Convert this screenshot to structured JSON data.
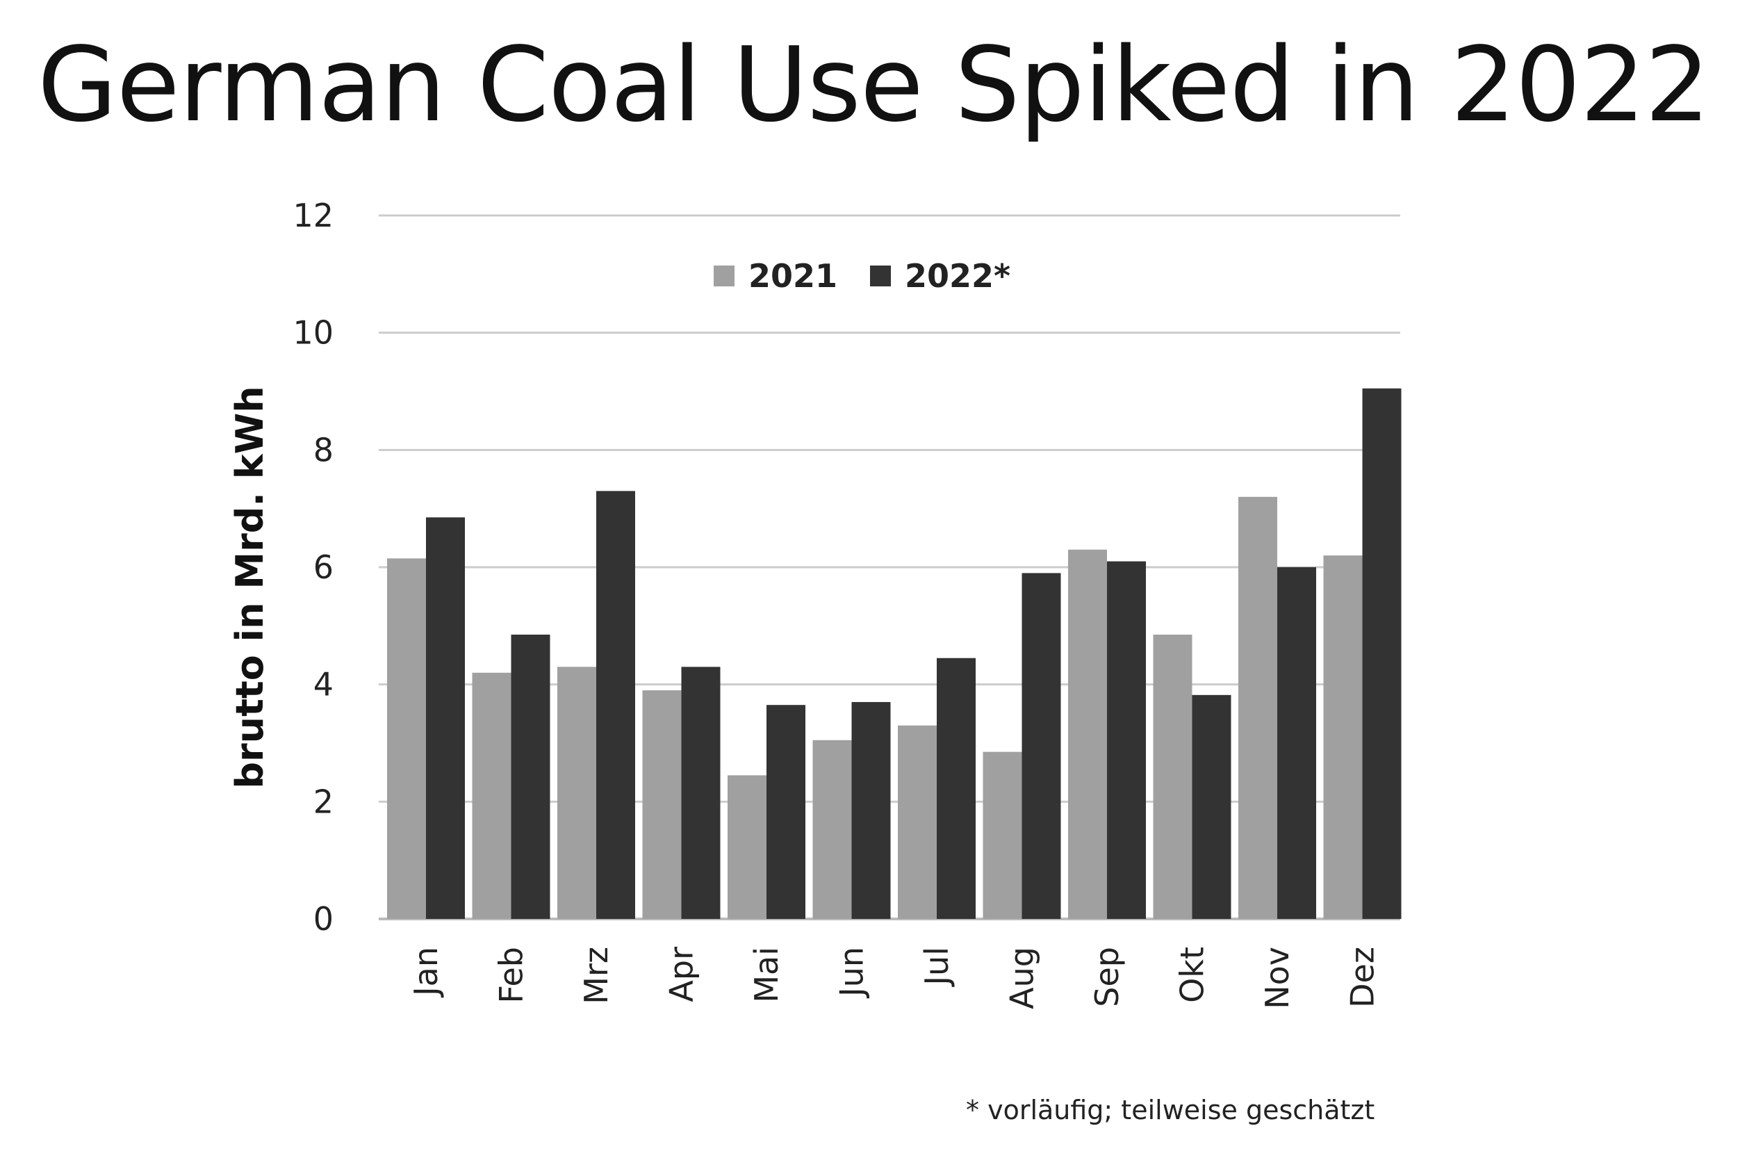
{
  "title": "German Coal Use Spiked in 2022",
  "footnote": "* vorläufig; teilweise geschätzt",
  "colors": {
    "series_2021": "#a0a0a0",
    "series_2022": "#333333",
    "grid": "#cccccc"
  },
  "chart_data": {
    "type": "bar",
    "title": "",
    "xlabel": "",
    "ylabel": "brutto in  Mrd. kWh",
    "ylim": [
      0,
      12
    ],
    "yticks": [
      0,
      2,
      4,
      6,
      8,
      10,
      12
    ],
    "grid": true,
    "legend": "top-center",
    "categories": [
      "Jan",
      "Feb",
      "Mrz",
      "Apr",
      "Mai",
      "Jun",
      "Jul",
      "Aug",
      "Sep",
      "Okt",
      "Nov",
      "Dez"
    ],
    "series": [
      {
        "name": "2021",
        "values": [
          6.15,
          4.2,
          4.3,
          3.9,
          2.45,
          3.05,
          3.3,
          2.85,
          6.3,
          4.85,
          7.2,
          6.2
        ]
      },
      {
        "name": "2022*",
        "values": [
          6.85,
          4.85,
          7.3,
          4.3,
          3.65,
          3.7,
          4.45,
          5.9,
          6.1,
          3.82,
          6.0,
          9.05
        ]
      }
    ]
  }
}
